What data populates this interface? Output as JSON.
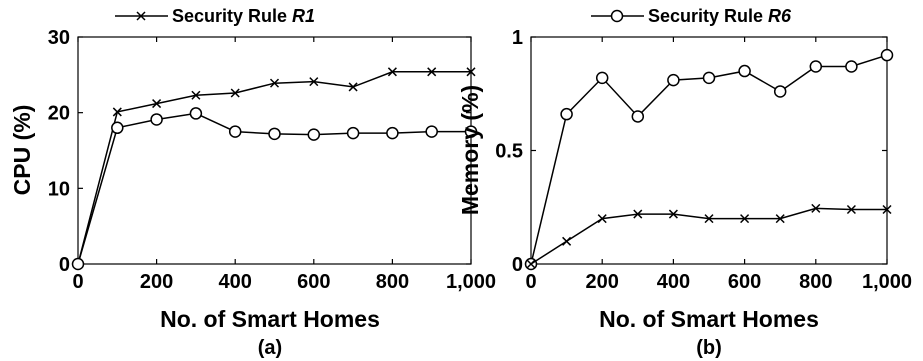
{
  "chart_data": [
    {
      "type": "line",
      "legend": {
        "line": "Security Rule ",
        "rule": "R1",
        "marker": "x",
        "placement": "top"
      },
      "xlabel": "No. of Smart Homes",
      "ylabel": "CPU (%)",
      "caption": "(a)",
      "xlim": [
        0,
        1000
      ],
      "ylim": [
        0,
        30
      ],
      "xticks": [
        "0",
        "200",
        "400",
        "600",
        "800",
        "1,000"
      ],
      "yticks": [
        "0",
        "10",
        "20",
        "30"
      ],
      "grid": false,
      "x": [
        0,
        100,
        200,
        300,
        400,
        500,
        600,
        700,
        800,
        900,
        1000
      ],
      "series": [
        {
          "marker": "x",
          "values": [
            0,
            20.1,
            21.2,
            22.3,
            22.6,
            23.9,
            24.1,
            23.4,
            25.4,
            25.4,
            25.4
          ]
        },
        {
          "marker": "o",
          "values": [
            0,
            18.0,
            19.1,
            19.9,
            17.5,
            17.2,
            17.1,
            17.3,
            17.3,
            17.5,
            17.5
          ]
        }
      ]
    },
    {
      "type": "line",
      "legend": {
        "line": "Security Rule ",
        "rule": "R6",
        "marker": "o",
        "placement": "top"
      },
      "xlabel": "No. of Smart Homes",
      "ylabel": "Memory (%)",
      "caption": "(b)",
      "xlim": [
        0,
        1000
      ],
      "ylim": [
        0,
        1
      ],
      "xticks": [
        "0",
        "200",
        "400",
        "600",
        "800",
        "1,000"
      ],
      "yticks": [
        "0",
        "0.5",
        "1"
      ],
      "grid": false,
      "x": [
        0,
        100,
        200,
        300,
        400,
        500,
        600,
        700,
        800,
        900,
        1000
      ],
      "series": [
        {
          "marker": "o",
          "values": [
            0,
            0.66,
            0.82,
            0.65,
            0.81,
            0.82,
            0.85,
            0.76,
            0.87,
            0.87,
            0.92
          ]
        },
        {
          "marker": "x",
          "values": [
            0,
            0.1,
            0.2,
            0.22,
            0.22,
            0.2,
            0.2,
            0.2,
            0.245,
            0.24,
            0.24
          ]
        }
      ]
    }
  ]
}
